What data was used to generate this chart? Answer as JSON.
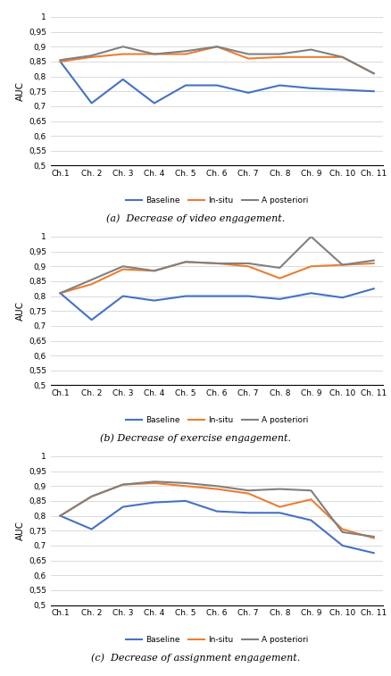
{
  "x_labels": [
    "Ch.1",
    "Ch. 2",
    "Ch. 3",
    "Ch. 4",
    "Ch. 5",
    "Ch. 6",
    "Ch. 7",
    "Ch. 8",
    "Ch. 9",
    "Ch. 10",
    "Ch. 11"
  ],
  "chart_a": {
    "title": "(a)  Decrease of video engagement.",
    "baseline": [
      0.85,
      0.71,
      0.79,
      0.71,
      0.77,
      0.77,
      0.745,
      0.77,
      0.76,
      0.755,
      0.75
    ],
    "insitu": [
      0.85,
      0.865,
      0.875,
      0.875,
      0.875,
      0.9,
      0.86,
      0.865,
      0.865,
      0.865,
      0.81
    ],
    "aposteriori": [
      0.855,
      0.87,
      0.9,
      0.875,
      0.885,
      0.9,
      0.875,
      0.875,
      0.89,
      0.865,
      0.81
    ]
  },
  "chart_b": {
    "title": "(b) Decrease of exercise engagement.",
    "baseline": [
      0.81,
      0.72,
      0.8,
      0.785,
      0.8,
      0.8,
      0.8,
      0.79,
      0.81,
      0.795,
      0.825
    ],
    "insitu": [
      0.81,
      0.84,
      0.89,
      0.885,
      0.915,
      0.91,
      0.9,
      0.86,
      0.9,
      0.905,
      0.91
    ],
    "aposteriori": [
      0.81,
      0.855,
      0.9,
      0.885,
      0.915,
      0.91,
      0.91,
      0.895,
      1.0,
      0.905,
      0.92
    ]
  },
  "chart_c": {
    "title": "(c)  Decrease of assignment engagement.",
    "baseline": [
      0.8,
      0.755,
      0.83,
      0.845,
      0.85,
      0.815,
      0.81,
      0.81,
      0.785,
      0.7,
      0.675
    ],
    "insitu": [
      0.8,
      0.865,
      0.905,
      0.91,
      0.9,
      0.89,
      0.875,
      0.83,
      0.855,
      0.755,
      0.725
    ],
    "aposteriori": [
      0.8,
      0.865,
      0.905,
      0.915,
      0.91,
      0.9,
      0.885,
      0.89,
      0.885,
      0.745,
      0.73
    ]
  },
  "colors": {
    "baseline": "#4472C4",
    "insitu": "#ED7D31",
    "aposteriori": "#808080"
  },
  "ylim": [
    0.5,
    1.0
  ],
  "yticks": [
    0.5,
    0.55,
    0.6,
    0.65,
    0.7,
    0.75,
    0.8,
    0.85,
    0.9,
    0.95,
    1.0
  ],
  "ytick_labels": [
    "0,5",
    "0,55",
    "0,6",
    "0,65",
    "0,7",
    "0,75",
    "0,8",
    "0,85",
    "0,9",
    "0,95",
    "1"
  ],
  "legend_labels": [
    "Baseline",
    "In-situ",
    "A posteriori"
  ],
  "ylabel": "AUC"
}
